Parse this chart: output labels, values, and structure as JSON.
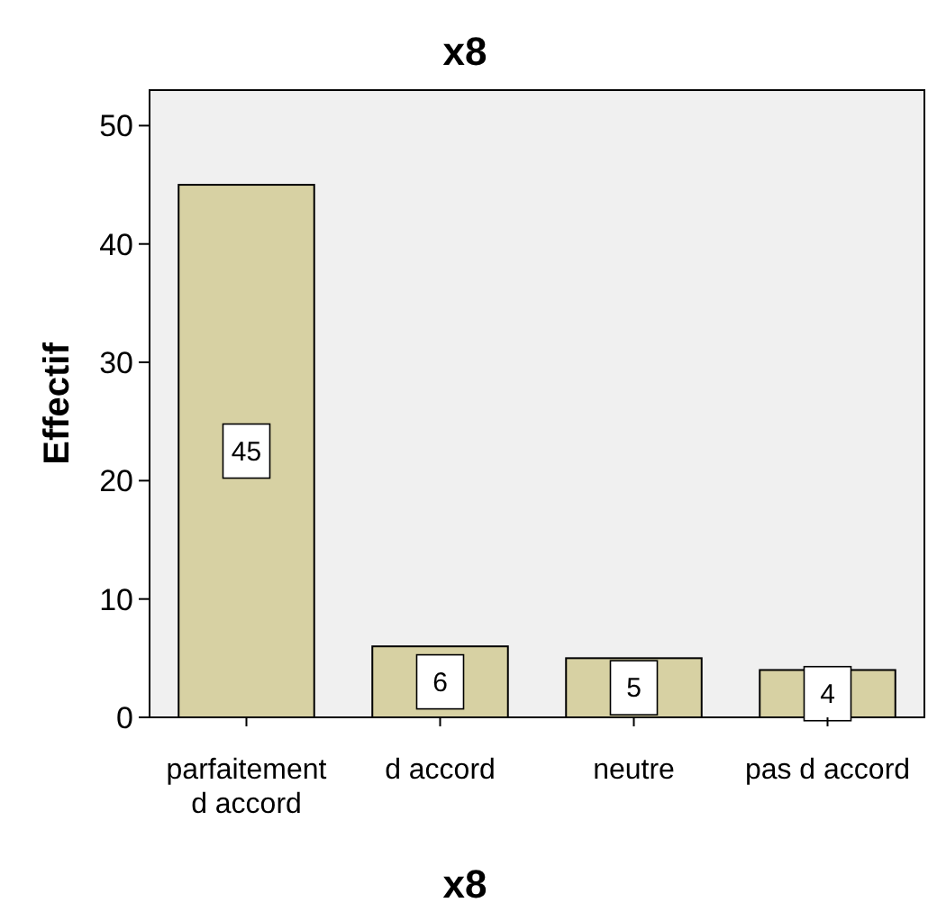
{
  "chart_data": {
    "type": "bar",
    "title": "x8",
    "xlabel": "x8",
    "ylabel": "Effectif",
    "categories": [
      "parfaitement d accord",
      "d accord",
      "neutre",
      "pas d accord"
    ],
    "values": [
      45,
      6,
      5,
      4
    ],
    "color": "#d7d1a3",
    "data_labels": true,
    "ylim": [
      0,
      53
    ],
    "yticks": [
      0,
      10,
      20,
      30,
      40,
      50
    ],
    "grid": false
  }
}
